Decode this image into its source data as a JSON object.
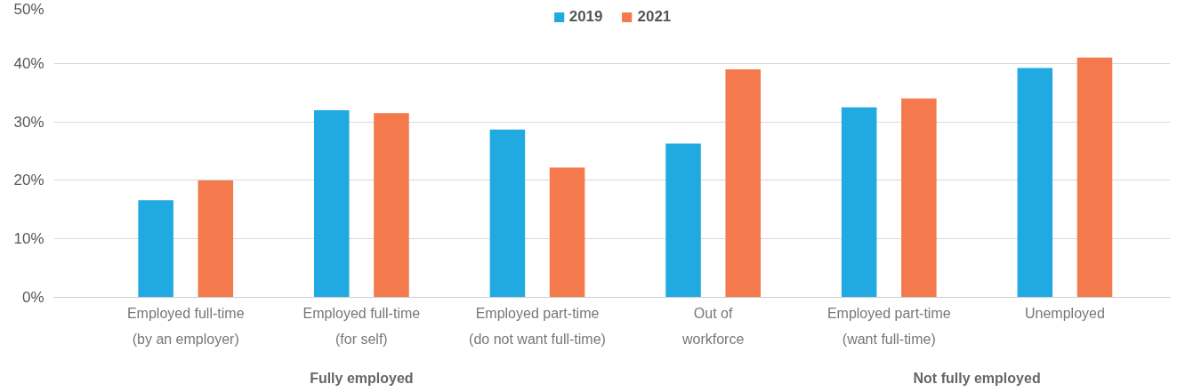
{
  "chart_data": {
    "type": "bar",
    "categories": [
      "Employed full-time\n(by an employer)",
      "Employed full-time\n(for self)",
      "Employed part-time\n(do not want full-time)",
      "Out of\nworkforce",
      "Employed part-time\n(want full-time)",
      "Unemployed"
    ],
    "series": [
      {
        "name": "2019",
        "color": "#21a9e1",
        "values": [
          16.6,
          32.0,
          28.7,
          26.3,
          32.5,
          39.2
        ]
      },
      {
        "name": "2021",
        "color": "#f4794c",
        "values": [
          20.0,
          31.5,
          22.2,
          39.0,
          34.0,
          41.0
        ]
      }
    ],
    "ylim": [
      0,
      50
    ],
    "yticks": [
      {
        "value": 0,
        "label": "0%"
      },
      {
        "value": 10,
        "label": "10%"
      },
      {
        "value": 20,
        "label": "20%"
      },
      {
        "value": 30,
        "label": "30%"
      },
      {
        "value": 40,
        "label": "40%"
      },
      {
        "value": 50,
        "label": "50%"
      }
    ],
    "annotations": [
      "Fully employed",
      "Not fully employed"
    ],
    "grid": "y",
    "legend": "top"
  }
}
